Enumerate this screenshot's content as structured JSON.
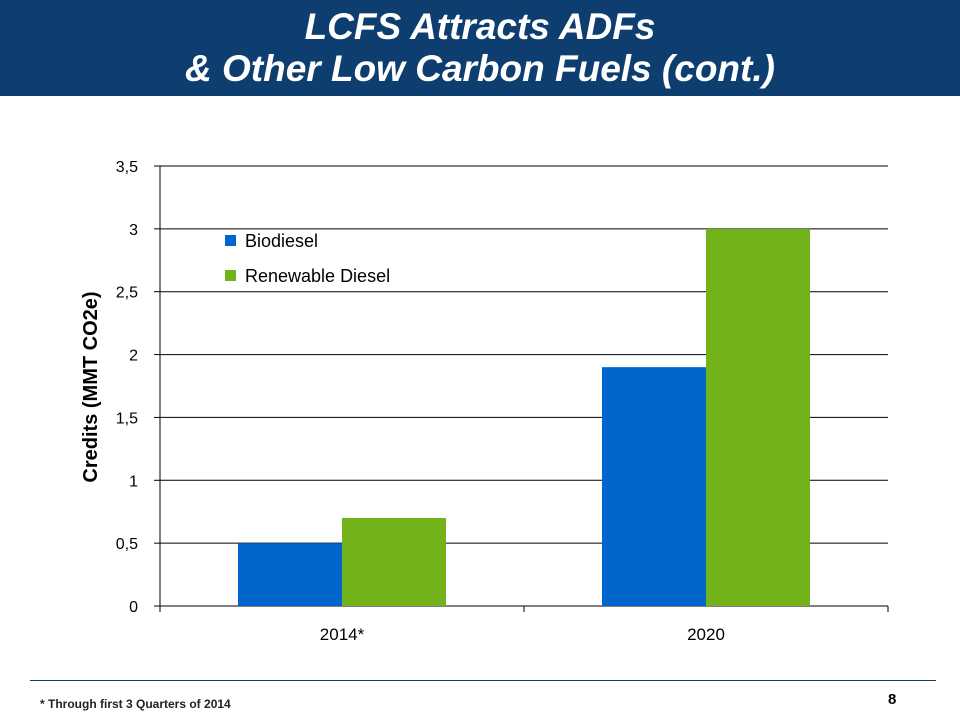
{
  "header": {
    "title_line1": "LCFS Attracts ADFs",
    "title_line2": "& Other Low Carbon Fuels (cont.)"
  },
  "colors": {
    "header_bg": "#0d3e6f",
    "biodiesel": "#0066cc",
    "renewable_diesel": "#72b31b"
  },
  "chart_data": {
    "type": "bar",
    "categories": [
      "2014*",
      "2020"
    ],
    "series": [
      {
        "name": "Biodiesel",
        "values": [
          0.5,
          1.9
        ],
        "color": "#0066cc"
      },
      {
        "name": "Renewable Diesel",
        "values": [
          0.7,
          3.0
        ],
        "color": "#72b31b"
      }
    ],
    "ylabel": "Credits (MMT CO2e)",
    "xlabel": "",
    "ylim": [
      0,
      3.5
    ],
    "yticks": [
      "0",
      "0,5",
      "1",
      "1,5",
      "2",
      "2,5",
      "3",
      "3,5"
    ],
    "grid": true,
    "legend": "top-left"
  },
  "footer": {
    "footnote": "* Through first 3 Quarters of 2014",
    "page_number": "8"
  }
}
